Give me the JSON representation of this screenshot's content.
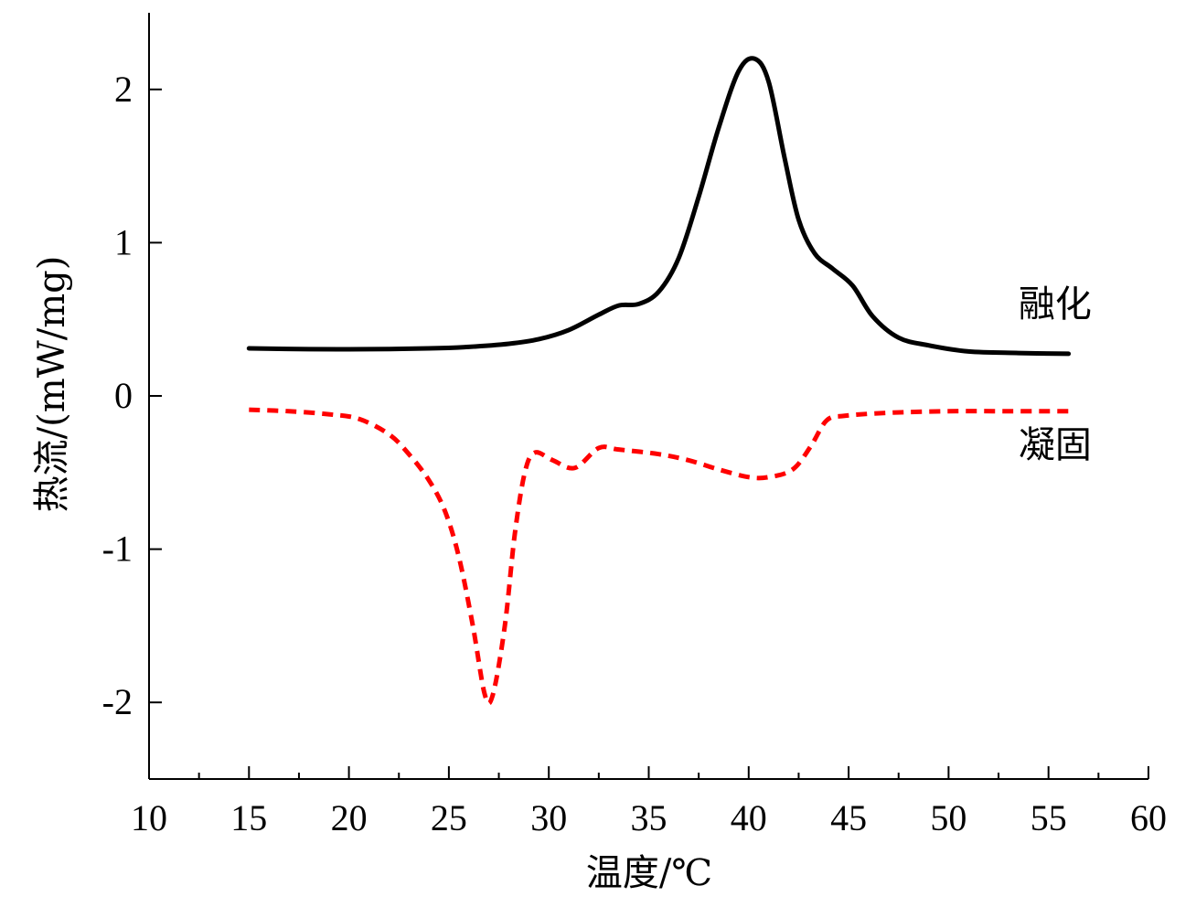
{
  "chart_data": {
    "type": "line",
    "xlabel": "温度/℃",
    "ylabel": "热流/(mW/mg)",
    "xlim": [
      10,
      60
    ],
    "ylim": [
      -2.5,
      2.5
    ],
    "x_ticks": [
      10,
      15,
      20,
      25,
      30,
      35,
      40,
      45,
      50,
      55,
      60
    ],
    "x_tick_labels": [
      "10",
      "15",
      "20",
      "25",
      "30",
      "35",
      "40",
      "45",
      "50",
      "55",
      "60"
    ],
    "y_ticks": [
      -2,
      -1,
      0,
      1,
      2
    ],
    "y_tick_labels": [
      "-2",
      "-1",
      "0",
      "1",
      "2"
    ],
    "grid": false,
    "series": [
      {
        "name": "融化",
        "color": "#000000",
        "style": "solid",
        "points": [
          [
            15,
            0.31
          ],
          [
            18,
            0.305
          ],
          [
            21,
            0.305
          ],
          [
            24,
            0.31
          ],
          [
            26,
            0.32
          ],
          [
            28,
            0.34
          ],
          [
            29.5,
            0.37
          ],
          [
            31,
            0.43
          ],
          [
            32.5,
            0.53
          ],
          [
            33.5,
            0.59
          ],
          [
            34.5,
            0.6
          ],
          [
            35.5,
            0.68
          ],
          [
            36.5,
            0.9
          ],
          [
            37.5,
            1.3
          ],
          [
            38.5,
            1.75
          ],
          [
            39.5,
            2.12
          ],
          [
            40.3,
            2.2
          ],
          [
            41,
            2.05
          ],
          [
            41.8,
            1.55
          ],
          [
            42.5,
            1.15
          ],
          [
            43.3,
            0.93
          ],
          [
            44.2,
            0.83
          ],
          [
            45.2,
            0.72
          ],
          [
            46.2,
            0.52
          ],
          [
            47.5,
            0.38
          ],
          [
            49,
            0.33
          ],
          [
            51,
            0.29
          ],
          [
            53.5,
            0.28
          ],
          [
            56,
            0.275
          ]
        ]
      },
      {
        "name": "凝固",
        "color": "#ff0000",
        "style": "dashed",
        "points": [
          [
            15,
            -0.09
          ],
          [
            17,
            -0.1
          ],
          [
            19,
            -0.12
          ],
          [
            20.5,
            -0.15
          ],
          [
            22,
            -0.25
          ],
          [
            23,
            -0.38
          ],
          [
            24,
            -0.55
          ],
          [
            24.8,
            -0.75
          ],
          [
            25.5,
            -1.05
          ],
          [
            26.2,
            -1.5
          ],
          [
            26.8,
            -1.95
          ],
          [
            27.2,
            -1.95
          ],
          [
            27.8,
            -1.5
          ],
          [
            28.3,
            -0.9
          ],
          [
            28.8,
            -0.5
          ],
          [
            29.3,
            -0.37
          ],
          [
            30.2,
            -0.42
          ],
          [
            31.3,
            -0.47
          ],
          [
            32.5,
            -0.34
          ],
          [
            33.5,
            -0.35
          ],
          [
            35.5,
            -0.38
          ],
          [
            37,
            -0.42
          ],
          [
            38.5,
            -0.48
          ],
          [
            40,
            -0.53
          ],
          [
            41,
            -0.53
          ],
          [
            42.2,
            -0.48
          ],
          [
            43.1,
            -0.33
          ],
          [
            43.9,
            -0.16
          ],
          [
            44.8,
            -0.13
          ],
          [
            47,
            -0.11
          ],
          [
            50,
            -0.1
          ],
          [
            53,
            -0.1
          ],
          [
            56,
            -0.1
          ]
        ]
      }
    ],
    "annotations": [
      {
        "text": "融化",
        "x": 53.5,
        "y": 0.52
      },
      {
        "text": "凝固",
        "x": 53.5,
        "y": -0.4
      }
    ]
  }
}
